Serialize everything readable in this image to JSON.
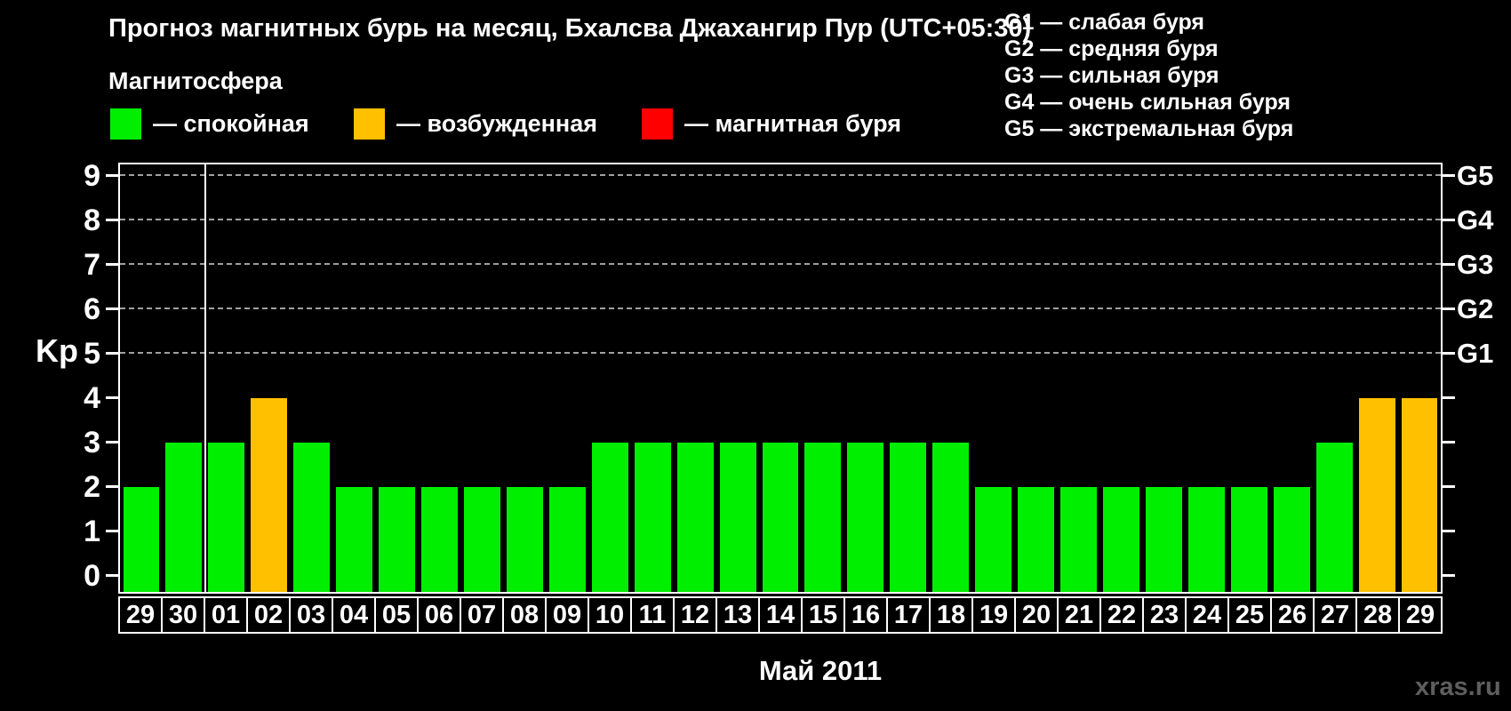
{
  "title": "Прогноз магнитных бурь на месяц, Бхалсва Джахангир Пур (UTC+05:30)",
  "watermark": "xras.ru",
  "magnetosphere_legend": {
    "heading": "Магнитосфера",
    "items": [
      {
        "name": "quiet",
        "label": "— спокойная",
        "color": "#00ee00"
      },
      {
        "name": "excited",
        "label": "— возбужденная",
        "color": "#ffc000"
      },
      {
        "name": "storm",
        "label": "— магнитная буря",
        "color": "#ff0000"
      }
    ]
  },
  "storm_scale_legend": [
    "G1 — слабая буря",
    "G2 — средняя буря",
    "G3 — сильная буря",
    "G4 — очень сильная буря",
    "G5 — экстремальная буря"
  ],
  "chart_data": {
    "type": "bar",
    "xlabel": "Май 2011",
    "ylabel": "Kp",
    "ylim": [
      0,
      9
    ],
    "y_ticks": [
      0,
      1,
      2,
      3,
      4,
      5,
      6,
      7,
      8,
      9
    ],
    "gridlines_at": [
      5,
      6,
      7,
      8,
      9
    ],
    "grid": "dashed horizontal lines at Kp 5-9",
    "legend_position": "top",
    "categories": [
      "29",
      "30",
      "01",
      "02",
      "03",
      "04",
      "05",
      "06",
      "07",
      "08",
      "09",
      "10",
      "11",
      "12",
      "13",
      "14",
      "15",
      "16",
      "17",
      "18",
      "19",
      "20",
      "21",
      "22",
      "23",
      "24",
      "25",
      "26",
      "27",
      "28",
      "29"
    ],
    "values": [
      2,
      3,
      3,
      4,
      3,
      2,
      2,
      2,
      2,
      2,
      2,
      3,
      3,
      3,
      3,
      3,
      3,
      3,
      3,
      3,
      2,
      2,
      2,
      2,
      2,
      2,
      2,
      2,
      3,
      4,
      4
    ],
    "bar_colors_rule": {
      "quiet_kp_lt_4": "#00ee00",
      "excited_kp_4": "#ffc000",
      "storm_kp_ge_5": "#ff0000"
    },
    "right_axis_labels": [
      {
        "label": "G1",
        "kp": 5
      },
      {
        "label": "G2",
        "kp": 6
      },
      {
        "label": "G3",
        "kp": 7
      },
      {
        "label": "G4",
        "kp": 8
      },
      {
        "label": "G5",
        "kp": 9
      }
    ],
    "month_separator_after_category_index": 1
  }
}
